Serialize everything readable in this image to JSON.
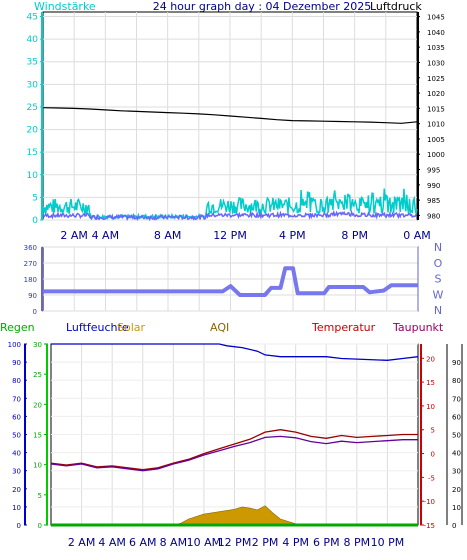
{
  "header": {
    "left_label": "Windstärke",
    "title": "24 hour graph day : 04 Dezember 2025",
    "right_label": "Luftdruck"
  },
  "compass_letters": [
    "N",
    "W",
    "S",
    "O",
    "N"
  ],
  "colors": {
    "wind_speed": "#00cccc",
    "wind_gust": "#6666ff",
    "pressure": "#000000",
    "direction": "#7777ee",
    "humidity": "#0000cc",
    "temperature": "#990000",
    "dewpoint": "#660099",
    "solar": "#cc9900",
    "rain": "#00aa00",
    "axis_right_bottom": "#cc0000"
  },
  "bottom_labels": {
    "rain": "Regen",
    "humidity": "Luftfeuchte",
    "solar": "Solar",
    "aqi": "AQI",
    "temperature": "Temperatur",
    "dewpoint": "Taupunkt"
  },
  "chart_data": [
    {
      "type": "line",
      "title": "24 hour graph day : 04 Dezember 2025",
      "x_unit": "hour of day",
      "x_ticks": [
        2,
        4,
        8,
        12,
        16,
        20,
        24
      ],
      "x_tick_labels": [
        "2 AM",
        "4 AM",
        "8 AM",
        "12 PM",
        "4 PM",
        "8 PM",
        "0 AM"
      ],
      "y_left": {
        "label": "Windstärke",
        "ticks": [
          0,
          5,
          10,
          15,
          20,
          25,
          30,
          35,
          40,
          45
        ],
        "range": [
          0,
          46
        ]
      },
      "y_right": {
        "label": "Luftdruck",
        "ticks": [
          980,
          985,
          990,
          995,
          1000,
          1005,
          1010,
          1015,
          1020,
          1025,
          1030,
          1035,
          1040,
          1045
        ],
        "range": [
          978.5,
          1046.5
        ]
      },
      "series": [
        {
          "name": "Luftdruck",
          "axis": "right",
          "x": [
            0,
            1,
            2,
            3,
            4,
            5,
            6,
            7,
            8,
            9,
            10,
            11,
            12,
            13,
            14,
            15,
            16,
            17,
            18,
            19,
            20,
            21,
            22,
            23,
            24
          ],
          "values": [
            1015.2,
            1015.1,
            1015.0,
            1014.8,
            1014.5,
            1014.2,
            1014.0,
            1013.8,
            1013.6,
            1013.4,
            1013.2,
            1012.9,
            1012.5,
            1012.1,
            1011.7,
            1011.3,
            1011.0,
            1010.9,
            1010.8,
            1010.7,
            1010.6,
            1010.5,
            1010.3,
            1010.1,
            1010.6
          ]
        }
      ]
    },
    {
      "type": "line",
      "y_ticks": [
        0,
        90,
        180,
        270,
        360
      ],
      "y_range": [
        0,
        360
      ],
      "series": [
        {
          "name": "Windrichtung",
          "x": [
            0,
            11.5,
            12.0,
            12.6,
            14.2,
            14.6,
            15.2,
            15.5,
            16.0,
            16.3,
            18.0,
            18.3,
            20.5,
            20.9,
            21.8,
            22.3,
            24
          ],
          "values": [
            110,
            110,
            140,
            90,
            90,
            130,
            130,
            240,
            240,
            100,
            100,
            135,
            135,
            105,
            115,
            145,
            145
          ]
        }
      ]
    },
    {
      "type": "line",
      "x_ticks": [
        2,
        4,
        6,
        8,
        10,
        12,
        14,
        16,
        18,
        20,
        22
      ],
      "x_tick_labels": [
        "2 AM",
        "4 AM",
        "6 AM",
        "8 AM",
        "10 AM",
        "12 PM",
        "2 PM",
        "4 PM",
        "6 PM",
        "8 PM",
        "10 PM"
      ],
      "y_left_outer": {
        "label": "Regen",
        "ticks": [
          0,
          10,
          20,
          30,
          40,
          50,
          60,
          70,
          80,
          90,
          100
        ],
        "range": [
          0,
          100
        ]
      },
      "y_left_inner": {
        "ticks": [
          0,
          5,
          10,
          15,
          20,
          25,
          30
        ],
        "range": [
          0,
          30
        ]
      },
      "y_right_inner": {
        "ticks": [
          -15,
          -10,
          -5,
          0,
          5,
          10,
          15,
          20
        ],
        "range": [
          -15,
          23
        ]
      },
      "y_right_outer": {
        "ticks": [
          0,
          10,
          20,
          30,
          40,
          50,
          60,
          70,
          80,
          90
        ],
        "range": [
          0,
          100
        ]
      },
      "series": [
        {
          "name": "Luftfeuchte",
          "axis": "right_outer",
          "x": [
            0,
            11,
            11.5,
            12.5,
            13.5,
            14.0,
            15.0,
            18.0,
            19.0,
            22.0,
            23.0,
            24
          ],
          "values": [
            100,
            100,
            99,
            98,
            96,
            94,
            93,
            93,
            92,
            91,
            92,
            93
          ]
        },
        {
          "name": "Temperatur",
          "axis": "right_inner",
          "x": [
            0,
            1,
            2,
            3,
            4,
            5,
            6,
            7,
            8,
            9,
            10,
            11,
            12,
            13,
            14,
            15,
            16,
            17,
            18,
            19,
            20,
            21,
            22,
            23,
            24
          ],
          "values": [
            -2.0,
            -2.4,
            -2.0,
            -2.8,
            -2.6,
            -3.0,
            -3.4,
            -3.0,
            -2.0,
            -1.2,
            0.0,
            1.0,
            2.0,
            3.0,
            4.5,
            5.0,
            4.5,
            3.6,
            3.2,
            3.8,
            3.4,
            3.6,
            3.8,
            4.0,
            4.0
          ]
        },
        {
          "name": "Taupunkt",
          "axis": "right_inner",
          "x": [
            0,
            1,
            2,
            3,
            4,
            5,
            6,
            7,
            8,
            9,
            10,
            11,
            12,
            13,
            14,
            15,
            16,
            17,
            18,
            19,
            20,
            21,
            22,
            23,
            24
          ],
          "values": [
            -2.2,
            -2.6,
            -2.2,
            -3.0,
            -2.8,
            -3.2,
            -3.6,
            -3.2,
            -2.2,
            -1.4,
            -0.3,
            0.6,
            1.5,
            2.3,
            3.4,
            3.6,
            3.3,
            2.5,
            2.1,
            2.6,
            2.3,
            2.5,
            2.7,
            2.9,
            2.9
          ]
        },
        {
          "name": "Solar",
          "axis": "left_inner",
          "x": [
            0,
            8.0,
            8.5,
            9.0,
            10.0,
            11.0,
            12.0,
            12.5,
            13.0,
            13.5,
            14.0,
            14.5,
            15.0,
            16.0,
            16.5,
            17.0,
            24
          ],
          "values": [
            0,
            0,
            0.3,
            1.0,
            1.8,
            2.2,
            2.6,
            3.0,
            2.8,
            2.5,
            3.2,
            2.0,
            1.0,
            0.2,
            0,
            0,
            0
          ]
        },
        {
          "name": "Regen",
          "axis": "left_outer",
          "x": [
            0,
            24
          ],
          "values": [
            0,
            0
          ]
        }
      ]
    }
  ]
}
